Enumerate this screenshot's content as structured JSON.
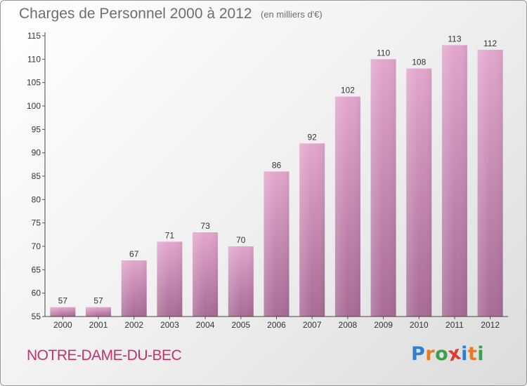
{
  "header": {
    "title": "Charges de Personnel 2000 à 2012",
    "unit_note": "(en milliers d'€)"
  },
  "footer": {
    "commune": "NOTRE-DAME-DU-BEC",
    "logo_letters": [
      "P",
      "r",
      "o",
      "x",
      "i",
      "t",
      "i"
    ],
    "logo_colors": [
      "#2f7fd0",
      "#e87b1d",
      "#3aa24c",
      "#e23b2e",
      "#2f7fd0",
      "#e87b1d",
      "#3aa24c"
    ]
  },
  "colors": {
    "bar_top": "#e3a6cc",
    "bar_bottom": "#a86b95",
    "axis": "#444444",
    "text": "#333333",
    "grid_tick": "#555555"
  },
  "chart_data": {
    "type": "bar",
    "title": "Charges de Personnel 2000 à 2012",
    "subtitle": "(en milliers d'€)",
    "categories": [
      "2000",
      "2001",
      "2002",
      "2003",
      "2004",
      "2005",
      "2006",
      "2007",
      "2008",
      "2009",
      "2010",
      "2011",
      "2012"
    ],
    "values": [
      57,
      57,
      67,
      71,
      73,
      70,
      86,
      92,
      102,
      110,
      108,
      113,
      112
    ],
    "data_labels": [
      "57",
      "57",
      "67",
      "71",
      "73",
      "70",
      "86",
      "92",
      "102",
      "110",
      "108",
      "113",
      "112"
    ],
    "ylim": [
      55,
      115
    ],
    "yticks": [
      55,
      60,
      65,
      70,
      75,
      80,
      85,
      90,
      95,
      100,
      105,
      110,
      115
    ],
    "ytick_labels": [
      "55",
      "60",
      "65",
      "70",
      "75",
      "80",
      "85",
      "90",
      "95",
      "100",
      "105",
      "110",
      "115"
    ],
    "grid": false,
    "legend": "none"
  }
}
